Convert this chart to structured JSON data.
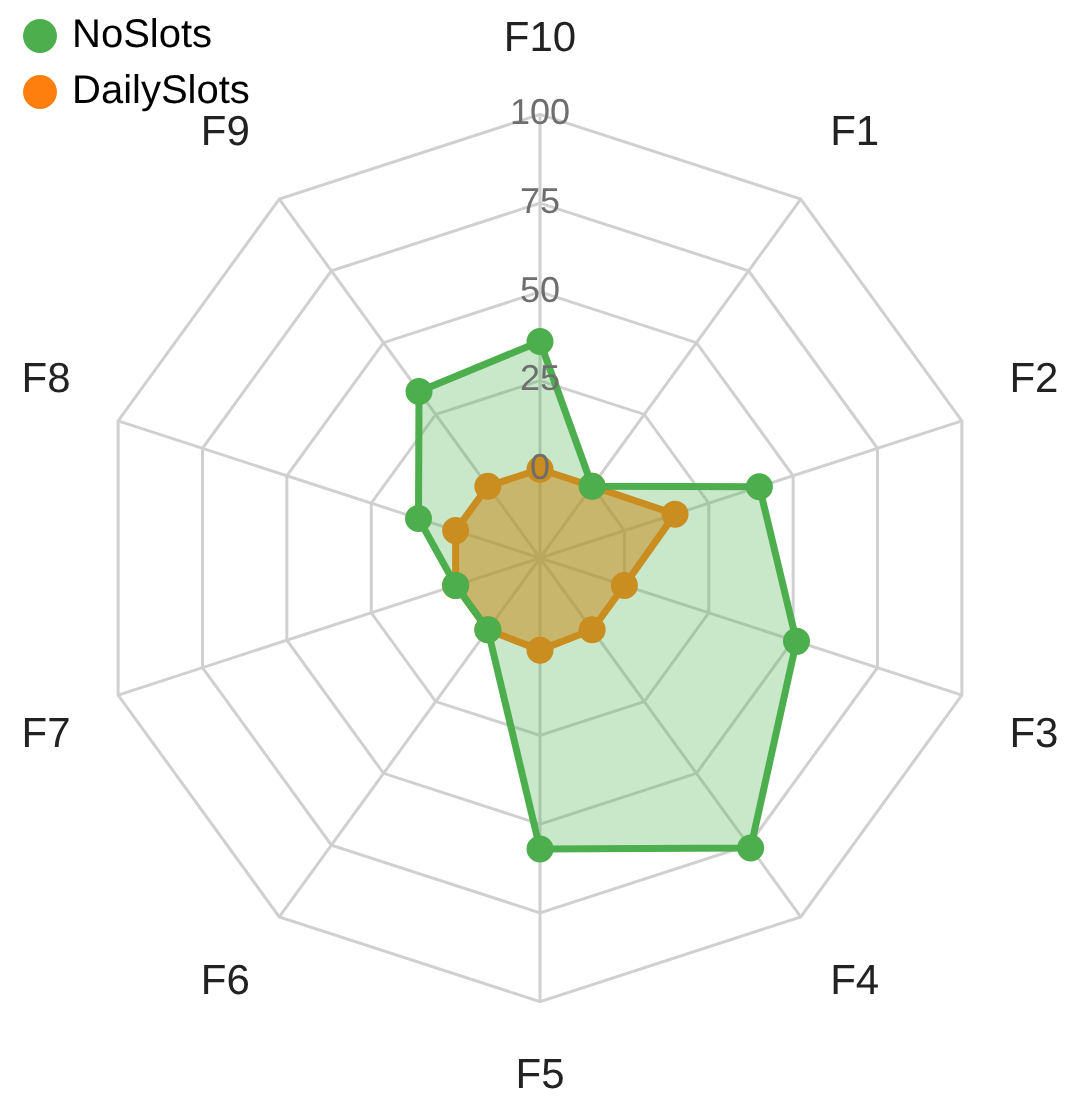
{
  "chart_data": {
    "type": "radar",
    "categories": [
      "F10",
      "F1",
      "F2",
      "F3",
      "F4",
      "F5",
      "F6",
      "F7",
      "F8",
      "F9"
    ],
    "series": [
      {
        "name": "NoSlots",
        "color": "#4cae4c",
        "values": [
          36,
          0,
          40,
          51,
          76,
          57,
          0,
          0,
          11,
          33
        ]
      },
      {
        "name": "DailySlots",
        "color": "#ff7f0e",
        "values": [
          0,
          0,
          15,
          0,
          0,
          1,
          0,
          0,
          0,
          0
        ]
      }
    ],
    "ylim": [
      -25,
      100
    ],
    "yticks": [
      0,
      25,
      50,
      75,
      100
    ],
    "legend": "top left",
    "marker": "circle",
    "grid": true
  }
}
